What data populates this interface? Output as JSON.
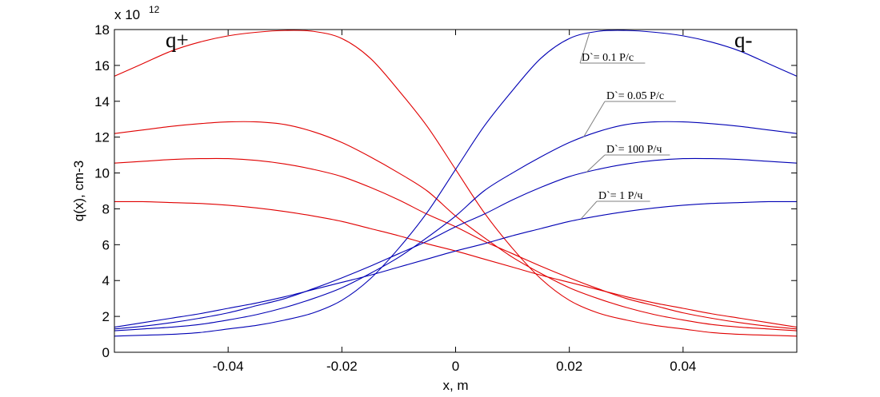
{
  "chart_data": {
    "type": "line",
    "xlabel": "x, m",
    "ylabel": "q(x), cm-3",
    "y_multiplier": {
      "base": "x 10",
      "exponent": "12"
    },
    "xlim": [
      -0.06,
      0.06
    ],
    "ylim": [
      0,
      18
    ],
    "x_ticks": [
      -0.04,
      -0.02,
      0,
      0.02,
      0.04
    ],
    "x_tick_labels": [
      "-0.04",
      "-0.02",
      "0",
      "0.02",
      "0.04"
    ],
    "y_ticks": [
      0,
      2,
      4,
      6,
      8,
      10,
      12,
      14,
      16,
      18
    ],
    "y_tick_labels": [
      "0",
      "2",
      "4",
      "6",
      "8",
      "10",
      "12",
      "14",
      "16",
      "18"
    ],
    "grid": false,
    "colors": {
      "q_plus": "#e00000",
      "q_minus": "#0000b4"
    },
    "corner_labels": {
      "left": "q+",
      "right": "q-"
    },
    "x": [
      -0.06,
      -0.055,
      -0.05,
      -0.045,
      -0.04,
      -0.035,
      -0.03,
      -0.025,
      -0.02,
      -0.015,
      -0.01,
      -0.005,
      0,
      0.005,
      0.01,
      0.015,
      0.02,
      0.025,
      0.03,
      0.035,
      0.04,
      0.045,
      0.05,
      0.055,
      0.06
    ],
    "series": [
      {
        "group": "q+",
        "values": [
          15.4,
          16.1,
          16.8,
          17.3,
          17.65,
          17.85,
          17.95,
          17.9,
          17.5,
          16.4,
          14.6,
          12.6,
          10.2,
          7.8,
          5.8,
          4.1,
          2.9,
          2.2,
          1.8,
          1.5,
          1.3,
          1.1,
          1.0,
          0.95,
          0.9
        ]
      },
      {
        "group": "q+",
        "values": [
          12.2,
          12.4,
          12.6,
          12.75,
          12.85,
          12.85,
          12.7,
          12.3,
          11.7,
          10.9,
          10.0,
          9.0,
          7.6,
          6.4,
          5.3,
          4.4,
          3.6,
          3.0,
          2.5,
          2.1,
          1.8,
          1.55,
          1.4,
          1.3,
          1.2
        ]
      },
      {
        "group": "q+",
        "values": [
          10.55,
          10.65,
          10.75,
          10.8,
          10.8,
          10.7,
          10.5,
          10.2,
          9.8,
          9.2,
          8.5,
          7.7,
          7.0,
          6.2,
          5.5,
          4.8,
          4.15,
          3.55,
          3.0,
          2.6,
          2.2,
          1.9,
          1.65,
          1.45,
          1.3
        ]
      },
      {
        "group": "q+",
        "values": [
          8.4,
          8.4,
          8.35,
          8.3,
          8.2,
          8.05,
          7.85,
          7.6,
          7.3,
          6.9,
          6.5,
          6.05,
          5.65,
          5.2,
          4.75,
          4.3,
          3.9,
          3.5,
          3.1,
          2.75,
          2.45,
          2.15,
          1.9,
          1.65,
          1.4
        ]
      },
      {
        "group": "q-",
        "name": "D`= 0.1 Р/с",
        "values": [
          0.9,
          0.95,
          1.0,
          1.1,
          1.3,
          1.5,
          1.8,
          2.2,
          2.9,
          4.1,
          5.8,
          7.8,
          10.2,
          12.6,
          14.6,
          16.4,
          17.5,
          17.9,
          17.95,
          17.85,
          17.65,
          17.3,
          16.8,
          16.1,
          15.4
        ]
      },
      {
        "group": "q-",
        "name": "D`= 0.05 Р/с",
        "values": [
          1.2,
          1.3,
          1.4,
          1.55,
          1.8,
          2.1,
          2.5,
          3.0,
          3.6,
          4.4,
          5.3,
          6.4,
          7.6,
          9.0,
          10.0,
          10.9,
          11.7,
          12.3,
          12.7,
          12.85,
          12.85,
          12.75,
          12.6,
          12.4,
          12.2
        ]
      },
      {
        "group": "q-",
        "name": "D`= 100 Р/ч",
        "values": [
          1.3,
          1.45,
          1.65,
          1.9,
          2.2,
          2.6,
          3.0,
          3.55,
          4.15,
          4.8,
          5.5,
          6.2,
          7.0,
          7.7,
          8.5,
          9.2,
          9.8,
          10.2,
          10.5,
          10.7,
          10.8,
          10.8,
          10.75,
          10.65,
          10.55
        ]
      },
      {
        "group": "q-",
        "name": "D`= 1 Р/ч",
        "values": [
          1.4,
          1.65,
          1.9,
          2.15,
          2.45,
          2.75,
          3.1,
          3.5,
          3.9,
          4.3,
          4.75,
          5.2,
          5.65,
          6.05,
          6.5,
          6.9,
          7.3,
          7.6,
          7.85,
          8.05,
          8.2,
          8.3,
          8.35,
          8.4,
          8.4
        ]
      }
    ],
    "annotations": [
      {
        "text": "D`= 0.1 Р/с",
        "series_index": 4
      },
      {
        "text": "D`= 0.05 Р/с",
        "series_index": 5
      },
      {
        "text": "D`= 100 Р/ч",
        "series_index": 6
      },
      {
        "text": "D`= 1 Р/ч",
        "series_index": 7
      }
    ]
  }
}
